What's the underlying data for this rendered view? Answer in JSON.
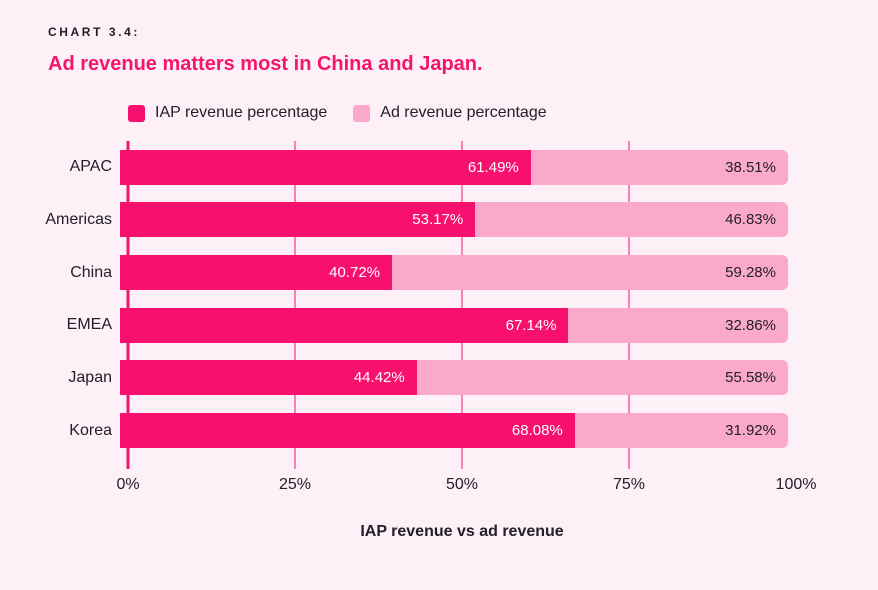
{
  "header": {
    "eyebrow": "CHART 3.4:",
    "title": "Ad revenue matters most in China and Japan."
  },
  "legend": {
    "items": [
      {
        "label": "IAP revenue percentage",
        "series": "iap"
      },
      {
        "label": "Ad revenue percentage",
        "series": "ad"
      }
    ]
  },
  "chart_data": {
    "type": "bar",
    "orientation": "horizontal",
    "stacked": true,
    "title": "Ad revenue matters most in China and Japan.",
    "xlabel": "IAP revenue vs ad revenue",
    "ylabel": "",
    "xlim": [
      0,
      100
    ],
    "grid": true,
    "legend_position": "top-left",
    "categories": [
      "APAC",
      "Americas",
      "China",
      "EMEA",
      "Japan",
      "Korea"
    ],
    "series": [
      {
        "name": "IAP revenue percentage",
        "key": "iap",
        "color": "#F7106D",
        "values": [
          61.49,
          53.17,
          40.72,
          67.14,
          44.42,
          68.08
        ]
      },
      {
        "name": "Ad revenue percentage",
        "key": "ad",
        "color": "#FAA9CB",
        "values": [
          38.51,
          46.83,
          59.28,
          32.86,
          55.58,
          31.92
        ]
      }
    ],
    "rows": [
      {
        "category": "APAC",
        "iap": {
          "value": 61.49,
          "label": "61.49%"
        },
        "ad": {
          "value": 38.51,
          "label": "38.51%"
        }
      },
      {
        "category": "Americas",
        "iap": {
          "value": 53.17,
          "label": "53.17%"
        },
        "ad": {
          "value": 46.83,
          "label": "46.83%"
        }
      },
      {
        "category": "China",
        "iap": {
          "value": 40.72,
          "label": "40.72%"
        },
        "ad": {
          "value": 59.28,
          "label": "59.28%"
        }
      },
      {
        "category": "EMEA",
        "iap": {
          "value": 67.14,
          "label": "67.14%"
        },
        "ad": {
          "value": 32.86,
          "label": "32.86%"
        }
      },
      {
        "category": "Japan",
        "iap": {
          "value": 44.42,
          "label": "44.42%"
        },
        "ad": {
          "value": 55.58,
          "label": "55.58%"
        }
      },
      {
        "category": "Korea",
        "iap": {
          "value": 68.08,
          "label": "68.08%"
        },
        "ad": {
          "value": 31.92,
          "label": "31.92%"
        }
      }
    ],
    "x_axis": {
      "title": "IAP revenue vs ad revenue",
      "ticks": [
        {
          "value": 0,
          "label": "0%",
          "grid": true,
          "zero": true
        },
        {
          "value": 25,
          "label": "25%",
          "grid": true,
          "zero": false
        },
        {
          "value": 50,
          "label": "50%",
          "grid": true,
          "zero": false
        },
        {
          "value": 75,
          "label": "75%",
          "grid": true,
          "zero": false
        },
        {
          "value": 100,
          "label": "100%",
          "grid": false,
          "zero": false
        }
      ]
    },
    "colors": {
      "background": "#FDF0F6",
      "accent": "#F5156D",
      "iap": "#F7106D",
      "ad": "#FAA9CB",
      "iap_label": "#FFFFFF",
      "grid": "#F584B5",
      "text": "#232027"
    }
  }
}
